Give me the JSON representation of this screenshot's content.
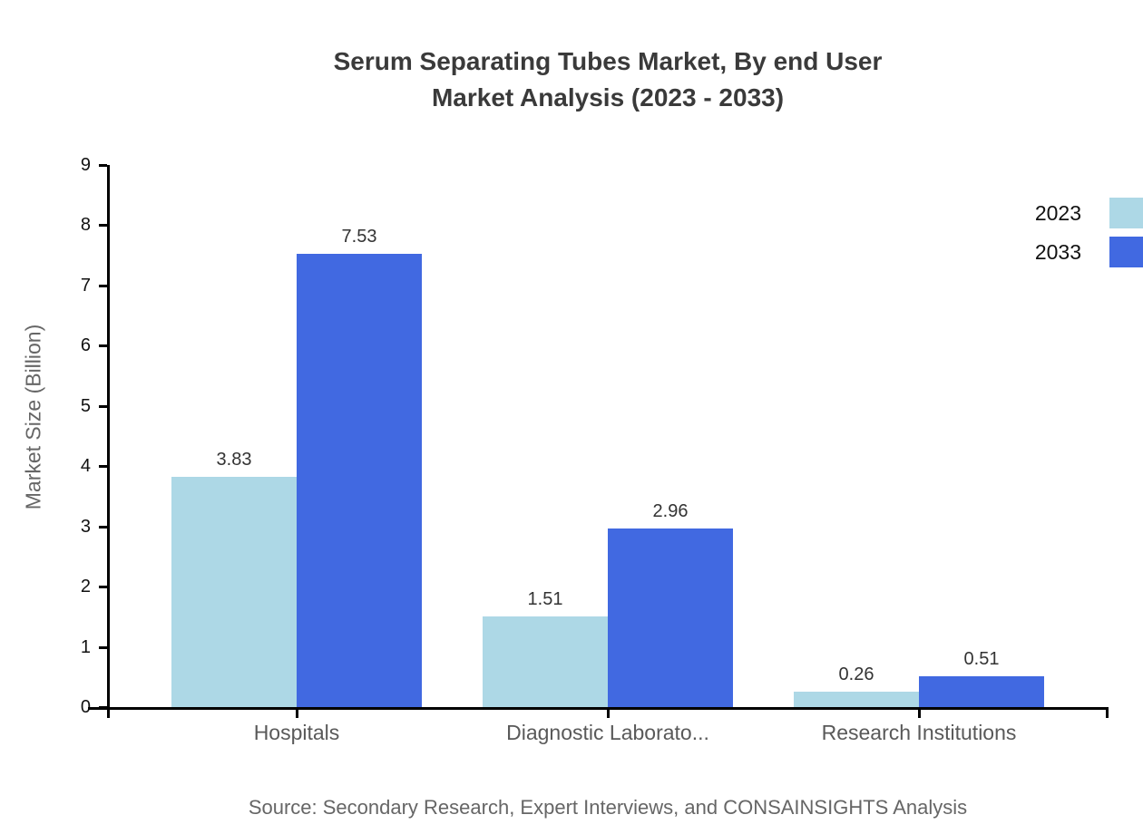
{
  "title": {
    "line1": "Serum Separating Tubes Market, By end User",
    "line2": "Market Analysis (2023 - 2033)"
  },
  "source_note": "Source: Secondary Research, Expert Interviews, and CONSAINSIGHTS Analysis",
  "colors": {
    "series_2023": "#ADD8E6",
    "series_2033": "#4169E1",
    "axis": "#000000",
    "title_text": "#3A3A3A",
    "y_tick_label": "#111111",
    "category_label": "#595959",
    "value_label": "#333333",
    "muted_text": "#666666",
    "background": "#FFFFFF"
  },
  "chart_data": {
    "type": "bar",
    "categories": [
      "Hospitals",
      "Diagnostic Laborato...",
      "Research Institutions"
    ],
    "series": [
      {
        "name": "2023",
        "color": "#ADD8E6",
        "values": [
          3.83,
          1.51,
          0.26
        ]
      },
      {
        "name": "2033",
        "color": "#4169E1",
        "values": [
          7.53,
          2.96,
          0.51
        ]
      }
    ],
    "title": "Serum Separating Tubes Market, By end User Market Analysis (2023 - 2033)",
    "xlabel": "",
    "ylabel": "Market Size (Billion)",
    "ylim": [
      0,
      9
    ],
    "ytick_step": 1,
    "grid": false,
    "legend_position": "top-right",
    "value_labels_shown": true
  }
}
